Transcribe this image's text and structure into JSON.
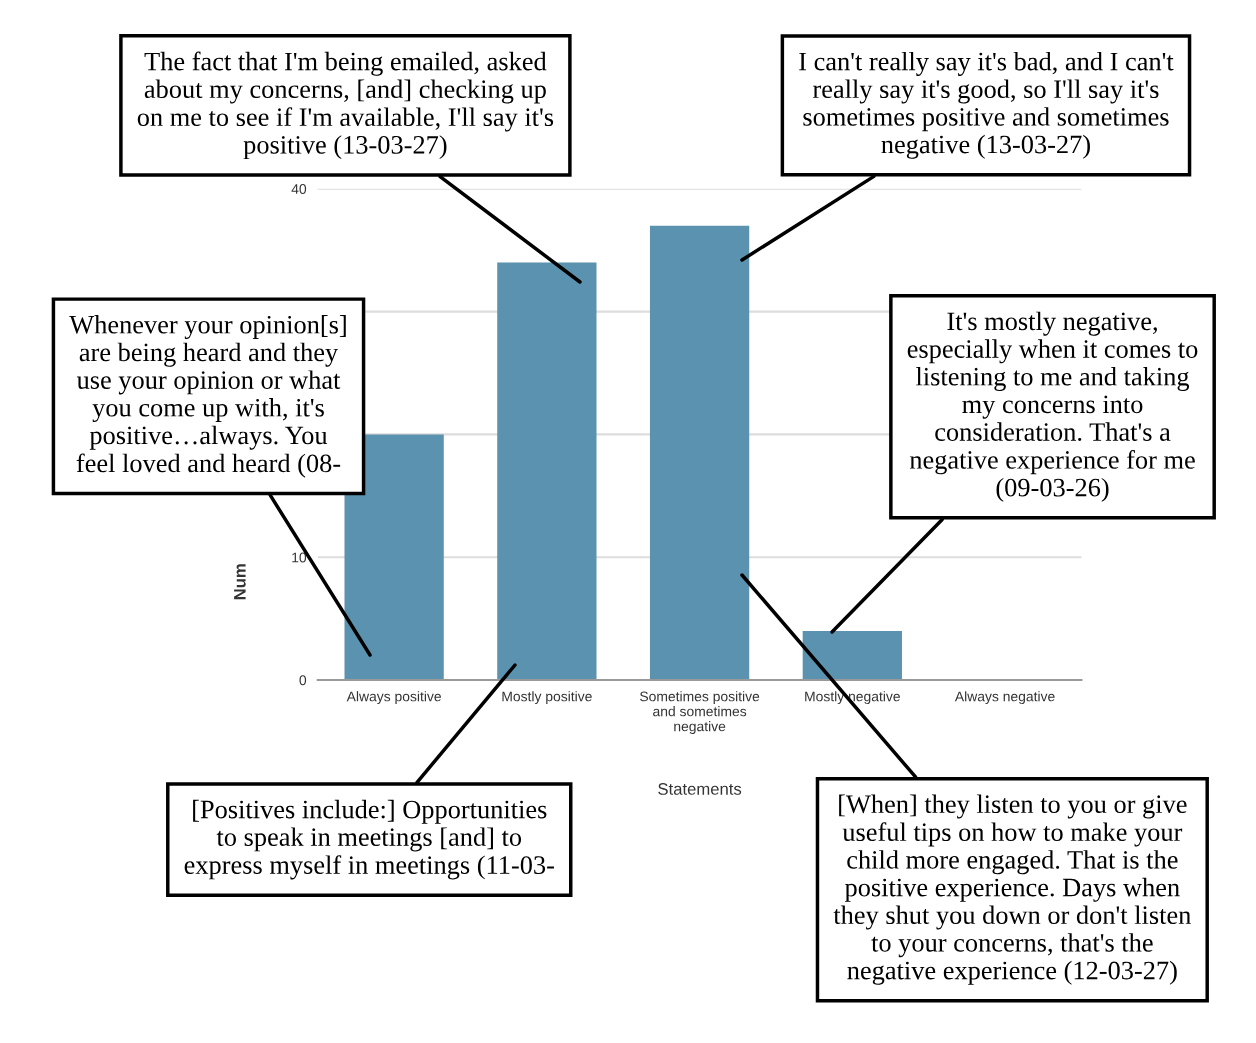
{
  "chart_data": {
    "type": "bar",
    "xlabel": "Statements",
    "ylabel": "Num",
    "categories": [
      "Always positive",
      "Mostly positive",
      "Sometimes positive\nand sometimes\nnegative",
      "Mostly negative",
      "Always negative"
    ],
    "values": [
      20,
      34,
      37,
      4,
      0
    ],
    "color": "#5b92b0",
    "ylim": [
      0,
      40
    ],
    "yticks": [
      0,
      10,
      {
        "value": 20,
        "label": null
      },
      {
        "value": 30,
        "label": null
      },
      40
    ],
    "grid": "y",
    "annotations": [
      "The fact that I'm being emailed, asked\nabout my concerns, [and] checking up\non me to see if I'm available, I'll say it's\npositive (13-03-27)",
      "I can't really say it's bad, and I can't\nreally say it's good, so I'll say it's\nsometimes positive and sometimes\nnegative (13-03-27)",
      "Whenever your opinion[s]\nare being heard and they\nuse your opinion or what\nyou come up with, it's\npositive…always. You\nfeel loved and heard (08-",
      "It's mostly negative,\nespecially when it comes to\nlistening to me and taking\nmy concerns into\nconsideration. That's a\nnegative experience for me\n(09-03-26)",
      "[Positives include:] Opportunities\nto speak in meetings [and] to\nexpress myself in meetings (11-03-",
      "[When] they listen to you or give\nuseful tips on how to make your\nchild more engaged. That is the\npositive experience. Days when\nthey shut you down or don't listen\nto your concerns, that's the\nnegative experience (12-03-27)"
    ]
  }
}
